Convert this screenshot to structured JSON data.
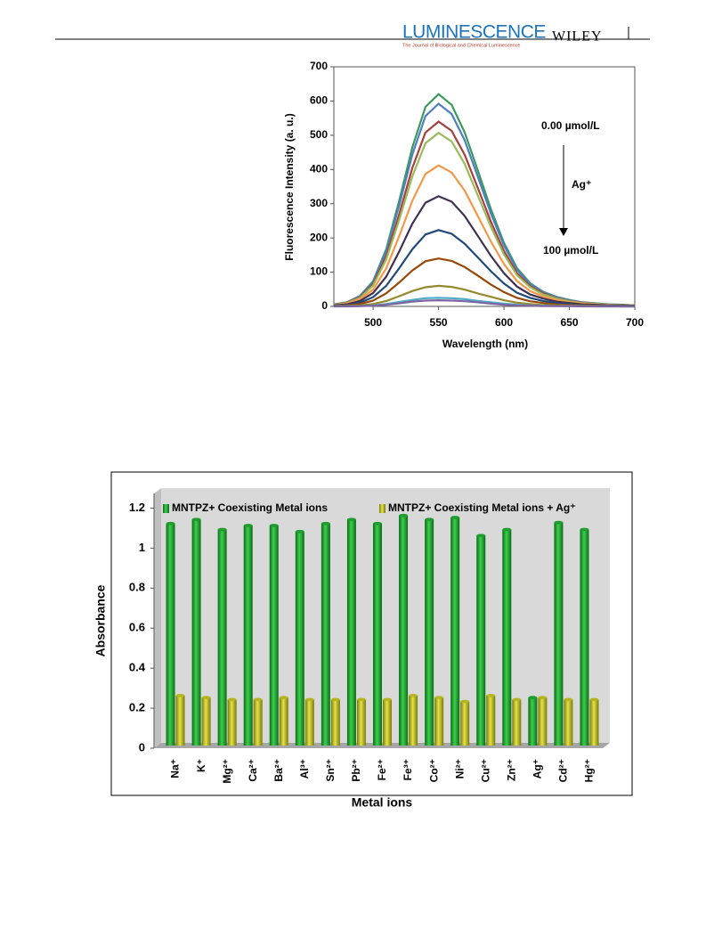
{
  "header": {
    "journal": "LUMINESCENCE",
    "subtitle": "The Journal of Biological and Chemical Luminescence",
    "publisher": "WILEY"
  },
  "chart_data": [
    {
      "type": "line",
      "x_label": "Wavelength (nm)",
      "y_label": "Fluorescence Intensity (a. u.)",
      "annotations": [
        "0.00 µmol/L",
        "Ag⁺",
        "100 µmol/L"
      ],
      "x": [
        470,
        480,
        490,
        500,
        510,
        520,
        530,
        540,
        550,
        560,
        570,
        580,
        590,
        600,
        610,
        620,
        630,
        640,
        650,
        660,
        670,
        680,
        690,
        700
      ],
      "xlim": [
        470,
        700
      ],
      "xticks": [
        500,
        550,
        600,
        650,
        700
      ],
      "ylim": [
        0,
        700
      ],
      "yticks": [
        0,
        100,
        200,
        300,
        400,
        500,
        600,
        700
      ],
      "series": [
        {
          "color": "#3a9a5e",
          "values": [
            6,
            12,
            31,
            74,
            167,
            310,
            465,
            583,
            620,
            589,
            508,
            397,
            285,
            186,
            112,
            68,
            43,
            28,
            19,
            12,
            9,
            6,
            5,
            3
          ]
        },
        {
          "color": "#4f7fbf",
          "values": [
            6,
            12,
            30,
            71,
            160,
            296,
            444,
            556,
            592,
            562,
            485,
            379,
            272,
            178,
            107,
            65,
            41,
            27,
            18,
            12,
            9,
            6,
            5,
            3
          ]
        },
        {
          "color": "#a5403e",
          "values": [
            5,
            11,
            27,
            65,
            146,
            270,
            405,
            508,
            540,
            513,
            443,
            346,
            248,
            162,
            97,
            59,
            38,
            24,
            16,
            11,
            8,
            5,
            4,
            3
          ]
        },
        {
          "color": "#9bbb59",
          "values": [
            5,
            10,
            25,
            61,
            137,
            254,
            380,
            477,
            507,
            482,
            416,
            324,
            233,
            152,
            91,
            56,
            35,
            23,
            15,
            10,
            8,
            5,
            4,
            3
          ]
        },
        {
          "color": "#f79646",
          "values": [
            4,
            8,
            21,
            49,
            111,
            206,
            309,
            387,
            412,
            391,
            338,
            264,
            190,
            124,
            74,
            45,
            29,
            19,
            12,
            8,
            6,
            4,
            3,
            2
          ]
        },
        {
          "color": "#403152",
          "values": [
            3,
            6,
            16,
            39,
            87,
            161,
            242,
            303,
            322,
            306,
            264,
            206,
            148,
            97,
            58,
            35,
            23,
            14,
            10,
            6,
            5,
            3,
            3,
            2
          ]
        },
        {
          "color": "#1f497d",
          "values": [
            2,
            4,
            11,
            27,
            60,
            112,
            167,
            210,
            223,
            212,
            183,
            143,
            103,
            67,
            40,
            25,
            16,
            10,
            7,
            4,
            3,
            2,
            2,
            1
          ]
        },
        {
          "color": "#984807",
          "values": [
            1,
            3,
            7,
            17,
            38,
            70,
            105,
            132,
            140,
            133,
            115,
            90,
            64,
            42,
            25,
            15,
            10,
            6,
            4,
            3,
            2,
            1,
            1,
            1
          ]
        },
        {
          "color": "#948a2a",
          "values": [
            1,
            1,
            3,
            7,
            16,
            30,
            45,
            56,
            60,
            57,
            49,
            38,
            28,
            18,
            11,
            7,
            4,
            3,
            2,
            1,
            1,
            1,
            0,
            0
          ]
        },
        {
          "color": "#4bacc6",
          "values": [
            0,
            1,
            1,
            3,
            7,
            13,
            19,
            24,
            25,
            24,
            21,
            16,
            12,
            8,
            5,
            3,
            2,
            1,
            1,
            1,
            0,
            0,
            0,
            0
          ]
        },
        {
          "color": "#8064a2",
          "values": [
            0,
            0,
            1,
            2,
            5,
            9,
            14,
            17,
            18,
            17,
            15,
            12,
            8,
            5,
            3,
            2,
            1,
            1,
            1,
            0,
            0,
            0,
            0,
            0
          ]
        }
      ]
    },
    {
      "type": "bar",
      "x_label": "Metal ions",
      "y_label": "Absorbance",
      "categories": [
        "Na⁺",
        "K⁺",
        "Mg²⁺",
        "Ca²⁺",
        "Ba²⁺",
        "Al³⁺",
        "Sn²⁺",
        "Pb²⁺",
        "Fe²⁺",
        "Fe³⁺",
        "Co²⁺",
        "Ni²⁺",
        "Cu²⁺",
        "Zn²⁺",
        "Ag⁺",
        "Cd²⁺",
        "Hg²⁺"
      ],
      "ylim": [
        0,
        1.3
      ],
      "yticks": [
        0,
        0.2,
        0.4,
        0.6,
        0.8,
        1,
        1.2
      ],
      "series": [
        {
          "name": "MNTPZ+ Coexisting Metal ions",
          "color": "#1e9e2e",
          "values": [
            1.11,
            1.13,
            1.08,
            1.1,
            1.1,
            1.07,
            1.11,
            1.13,
            1.11,
            1.15,
            1.13,
            1.14,
            1.05,
            1.08,
            0.24,
            1.115,
            1.08
          ]
        },
        {
          "name": "MNTPZ+ Coexisting Metal ions + Ag⁺",
          "color": "#b5b520",
          "values": [
            0.25,
            0.24,
            0.23,
            0.23,
            0.24,
            0.23,
            0.23,
            0.23,
            0.23,
            0.25,
            0.24,
            0.22,
            0.25,
            0.23,
            0.24,
            0.23,
            0.23
          ]
        }
      ]
    }
  ]
}
